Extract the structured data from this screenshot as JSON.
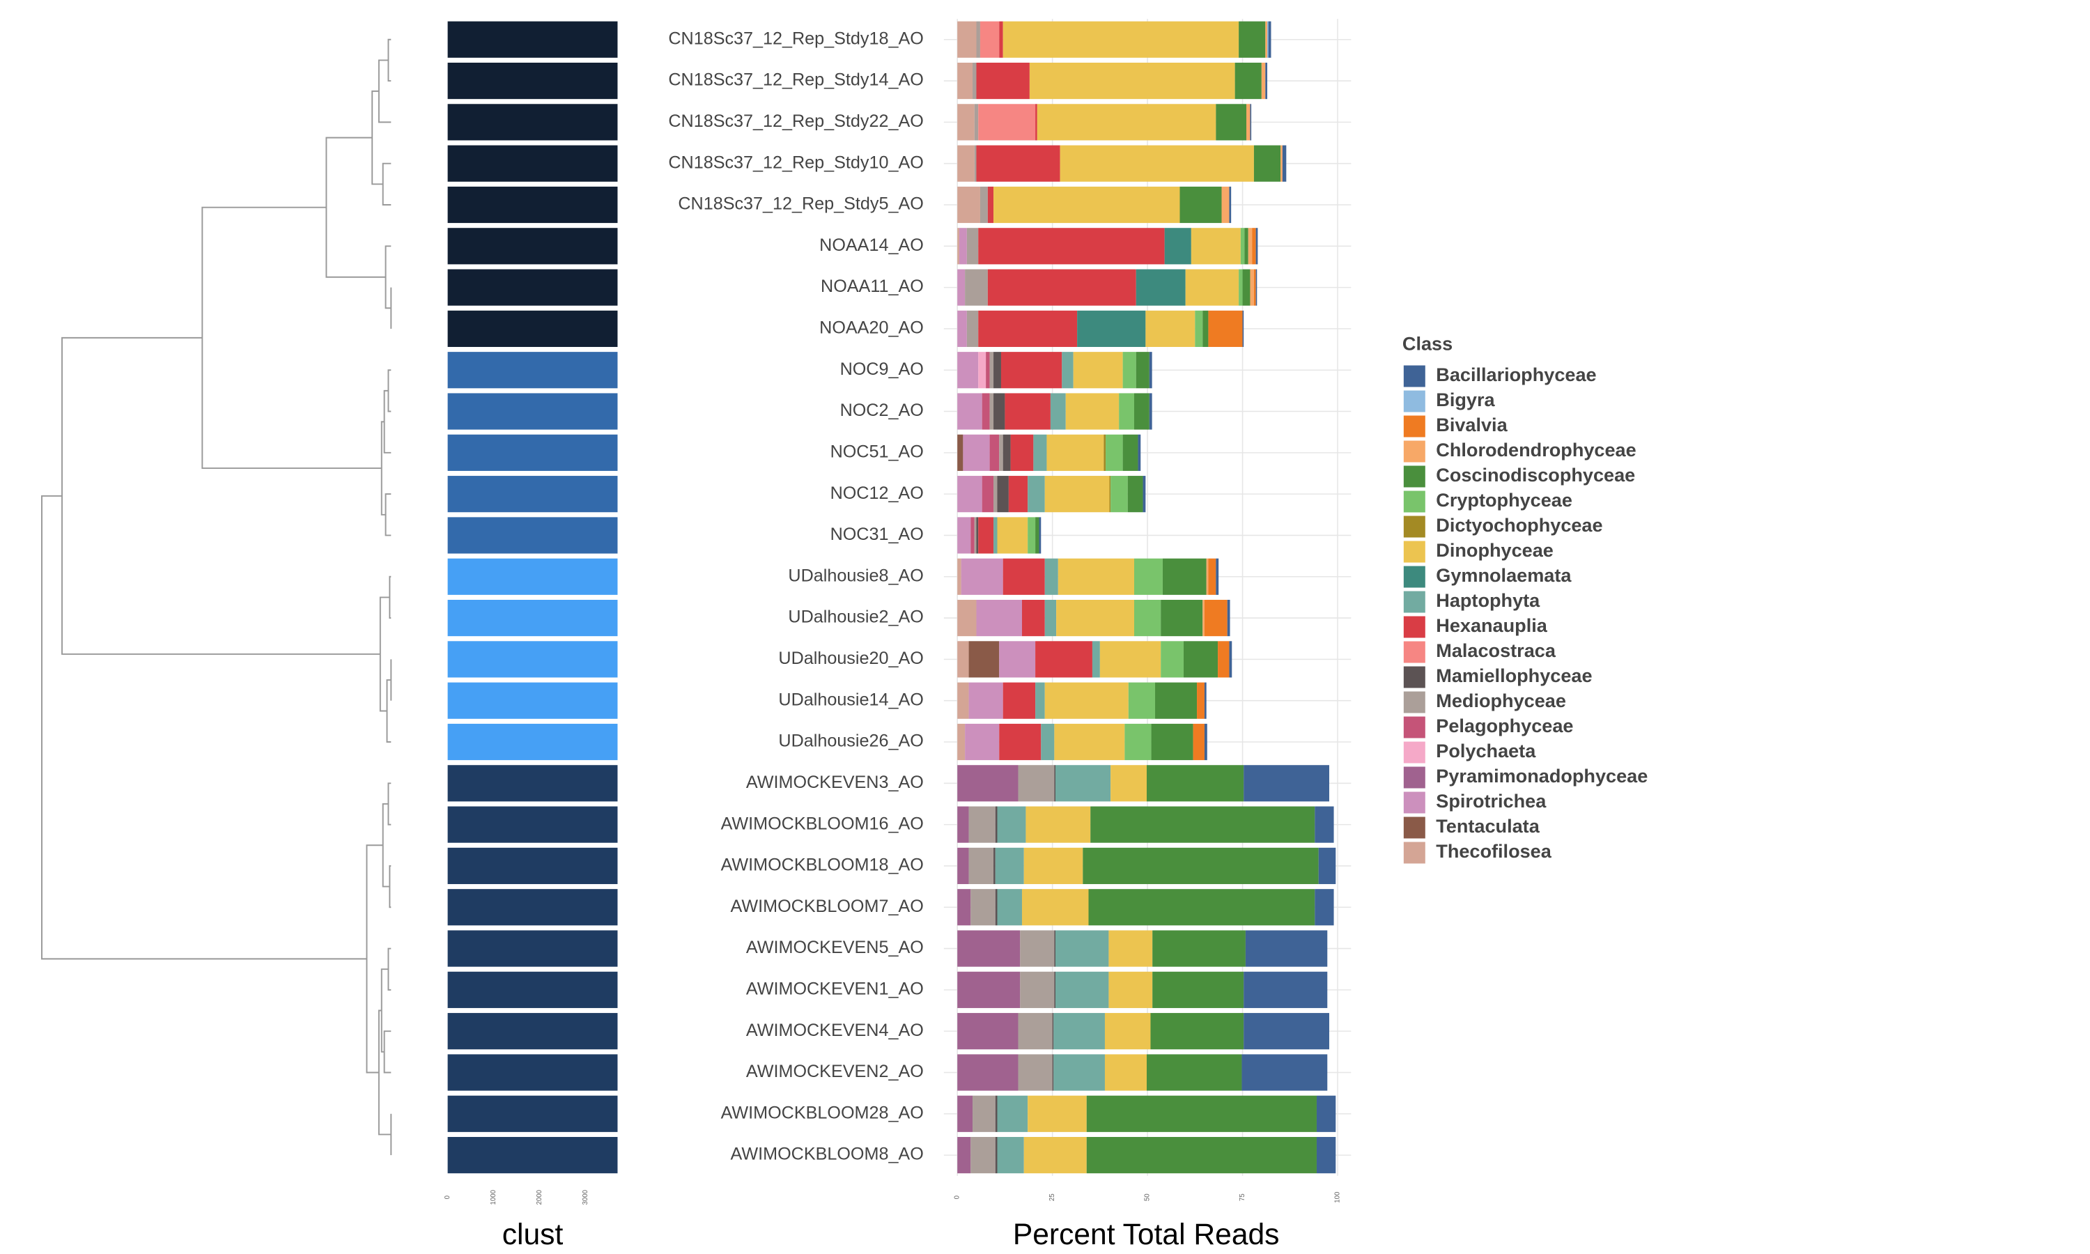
{
  "chart_data": [
    {
      "type": "bar",
      "orientation": "horizontal",
      "xlabel": "clust",
      "values": [
        3700,
        3700,
        3700,
        3700,
        3700,
        3700,
        3700,
        3700,
        3700,
        3700,
        3700,
        3700,
        3700,
        3700,
        3700,
        3700,
        3700,
        3700,
        3700,
        3700,
        3700,
        3700,
        3700,
        3700,
        3700,
        3700,
        3700,
        3700
      ],
      "colors": [
        "#111f33",
        "#111f33",
        "#111f33",
        "#111f33",
        "#111f33",
        "#111f33",
        "#111f33",
        "#111f33",
        "#336aab",
        "#336aab",
        "#336aab",
        "#336aab",
        "#336aab",
        "#46a0f5",
        "#46a0f5",
        "#46a0f5",
        "#46a0f5",
        "#46a0f5",
        "#1f3c62",
        "#1f3c62",
        "#1f3c62",
        "#1f3c62",
        "#1f3c62",
        "#1f3c62",
        "#1f3c62",
        "#1f3c62",
        "#1f3c62",
        "#1f3c62"
      ],
      "xlim": [
        0,
        3700
      ],
      "xticks": [
        0,
        1000,
        2000,
        3000
      ]
    },
    {
      "type": "stacked_bar",
      "orientation": "horizontal",
      "xlabel": "Percent Total Reads",
      "legend_title": "Class",
      "legend": "right",
      "grid": true,
      "xlim": [
        0,
        100
      ],
      "xticks": [
        0,
        25,
        50,
        75,
        100
      ],
      "categories": [
        "CN18Sc37_12_Rep_Stdy18_AO",
        "CN18Sc37_12_Rep_Stdy14_AO",
        "CN18Sc37_12_Rep_Stdy22_AO",
        "CN18Sc37_12_Rep_Stdy10_AO",
        "CN18Sc37_12_Rep_Stdy5_AO",
        "NOAA14_AO",
        "NOAA11_AO",
        "NOAA20_AO",
        "NOC9_AO",
        "NOC2_AO",
        "NOC51_AO",
        "NOC12_AO",
        "NOC31_AO",
        "UDalhousie8_AO",
        "UDalhousie2_AO",
        "UDalhousie20_AO",
        "UDalhousie14_AO",
        "UDalhousie26_AO",
        "AWIMOCKEVEN3_AO",
        "AWIMOCKBLOOM16_AO",
        "AWIMOCKBLOOM18_AO",
        "AWIMOCKBLOOM7_AO",
        "AWIMOCKEVEN5_AO",
        "AWIMOCKEVEN1_AO",
        "AWIMOCKEVEN4_AO",
        "AWIMOCKEVEN2_AO",
        "AWIMOCKBLOOM28_AO",
        "AWIMOCKBLOOM8_AO"
      ],
      "series": [
        {
          "name": "Bacillariophyceae",
          "color": "#3f6396",
          "values": [
            0.7,
            0.5,
            0.3,
            1,
            0.5,
            0.5,
            0.3,
            0.3,
            0.7,
            0.7,
            0.7,
            0.7,
            0.5,
            0.7,
            0.7,
            0.7,
            0.5,
            0.7,
            22.5,
            5,
            4.5,
            5,
            21.5,
            22,
            22.5,
            22.5,
            5,
            5
          ]
        },
        {
          "name": "Bigyra",
          "color": "#8fbbe0",
          "values": [
            0.3,
            0,
            0,
            0,
            0,
            0,
            0,
            0,
            0,
            0,
            0,
            0,
            0,
            0,
            0,
            0,
            0,
            0,
            0,
            0,
            0,
            0,
            0,
            0,
            0,
            0,
            0,
            0
          ]
        },
        {
          "name": "Bivalvia",
          "color": "#ef7b22",
          "values": [
            0,
            0,
            0,
            0,
            0,
            1,
            0.5,
            9,
            0,
            0,
            0,
            0,
            0,
            2,
            6,
            3,
            2,
            3,
            0,
            0,
            0,
            0,
            0,
            0,
            0,
            0,
            0,
            0
          ]
        },
        {
          "name": "Chlorodendrophyceae",
          "color": "#f7a867",
          "values": [
            0.5,
            1,
            1,
            0.5,
            2,
            1,
            1,
            0,
            0,
            0,
            0,
            0,
            0,
            0.5,
            0.5,
            0,
            0,
            0,
            0,
            0,
            0,
            0,
            0,
            0,
            0,
            0,
            0,
            0
          ]
        },
        {
          "name": "Coscinodiscophyceae",
          "color": "#4a8f3d",
          "values": [
            7,
            7,
            8,
            7,
            11,
            1,
            2,
            1.5,
            3.5,
            4,
            4,
            4,
            1,
            11.5,
            11,
            9,
            11,
            11,
            25.5,
            59,
            62,
            59.5,
            24.5,
            24,
            24.5,
            25,
            60.5,
            60.5
          ]
        },
        {
          "name": "Cryptophyceae",
          "color": "#79c46b",
          "values": [
            0,
            0,
            0,
            0,
            0,
            1,
            1,
            2,
            3.5,
            4,
            4.5,
            4.5,
            2,
            7.5,
            7,
            6,
            7,
            7,
            0,
            0,
            0,
            0,
            0,
            0,
            0,
            0,
            0,
            0
          ]
        },
        {
          "name": "Dictyochophyceae",
          "color": "#a38a24",
          "values": [
            0,
            0,
            0,
            0,
            0,
            0,
            0,
            0,
            0,
            0,
            0.5,
            0.3,
            0,
            0,
            0,
            0,
            0,
            0,
            0,
            0,
            0,
            0,
            0,
            0,
            0,
            0,
            0,
            0
          ]
        },
        {
          "name": "Dinophyceae",
          "color": "#ecc450",
          "values": [
            62,
            54,
            47,
            51,
            49,
            13,
            14,
            13,
            13,
            14,
            15,
            17,
            8,
            20,
            20.5,
            16,
            22,
            18.5,
            9.5,
            17,
            15.5,
            17.5,
            11.5,
            11.5,
            12,
            11,
            15.5,
            16.5
          ]
        },
        {
          "name": "Gymnolaemata",
          "color": "#3d8a7e",
          "values": [
            0,
            0,
            0,
            0,
            0,
            7,
            13,
            18,
            0,
            0,
            0,
            0,
            0,
            0,
            0,
            0,
            0,
            0,
            0,
            0,
            0,
            0,
            0,
            0,
            0,
            0,
            0,
            0
          ]
        },
        {
          "name": "Haptophyta",
          "color": "#72aba1",
          "values": [
            0,
            0,
            0,
            0,
            0,
            0,
            0,
            0,
            3,
            4,
            3.5,
            4.5,
            1,
            3.5,
            3,
            2,
            2.5,
            3.5,
            14.5,
            7.5,
            7.5,
            6.5,
            14,
            14,
            13.5,
            13.5,
            8,
            7
          ]
        },
        {
          "name": "Hexanauplia",
          "color": "#d93d45",
          "values": [
            1,
            14,
            0.5,
            22,
            1.5,
            49,
            39,
            26,
            16,
            12,
            6,
            5,
            4,
            11,
            6,
            15,
            8.5,
            11,
            0,
            0,
            0,
            0,
            0,
            0,
            0,
            0,
            0,
            0
          ]
        },
        {
          "name": "Malacostraca",
          "color": "#f68683",
          "values": [
            5,
            0,
            15,
            0,
            0,
            0,
            0,
            0,
            0,
            0,
            0,
            0,
            0,
            0,
            0,
            0,
            0,
            0,
            0,
            0,
            0,
            0,
            0,
            0,
            0,
            0,
            0,
            0
          ]
        },
        {
          "name": "Mamiellophyceae",
          "color": "#5c5354",
          "values": [
            0,
            0,
            0,
            0,
            0,
            0,
            0,
            0,
            2,
            3,
            2,
            3,
            0.5,
            0,
            0,
            0,
            0,
            0,
            0.3,
            0.5,
            0.5,
            0.5,
            0.3,
            0.3,
            0.3,
            0.3,
            0.5,
            0.5
          ]
        },
        {
          "name": "Mediophyceae",
          "color": "#ab9f99",
          "values": [
            1,
            1,
            1,
            0.5,
            2,
            3,
            6,
            3,
            1,
            1,
            1,
            1,
            0.5,
            0,
            0,
            0,
            0,
            0,
            9.5,
            7,
            6.5,
            6.5,
            9,
            9,
            9,
            9,
            6,
            6.5
          ]
        },
        {
          "name": "Pelagophyceae",
          "color": "#c55478",
          "values": [
            0,
            0,
            0,
            0,
            0,
            0,
            0,
            0,
            1,
            2,
            2.5,
            3,
            1,
            0,
            0,
            0,
            0,
            0,
            0,
            0,
            0,
            0,
            0,
            0,
            0,
            0,
            0,
            0
          ]
        },
        {
          "name": "Polychaeta",
          "color": "#f5a9c8",
          "values": [
            0,
            0,
            0,
            0,
            0,
            0,
            0,
            0,
            2,
            0,
            0,
            0,
            0,
            0,
            0,
            0,
            0,
            0,
            0,
            0,
            0,
            0,
            0,
            0,
            0,
            0,
            0,
            0
          ]
        },
        {
          "name": "Pyramimonadophyceae",
          "color": "#a0628f",
          "values": [
            0,
            0,
            0,
            0,
            0,
            0,
            0,
            0,
            0,
            0,
            0,
            0,
            0,
            0,
            0,
            0,
            0,
            0,
            16,
            3,
            3,
            3.5,
            16.5,
            16.5,
            16,
            16,
            4,
            3.5
          ]
        },
        {
          "name": "Spirotrichea",
          "color": "#cc90bd",
          "values": [
            0,
            0,
            0,
            0,
            0,
            2,
            2,
            2.5,
            5.5,
            6.5,
            7,
            6.5,
            3.5,
            11,
            12,
            9.5,
            9,
            9,
            0,
            0,
            0,
            0,
            0,
            0,
            0,
            0,
            0,
            0
          ]
        },
        {
          "name": "Tentaculata",
          "color": "#8a5a48",
          "values": [
            0,
            0,
            0,
            0,
            0,
            0,
            0,
            0,
            0,
            0,
            1.5,
            0,
            0,
            0,
            0,
            8,
            0,
            0,
            0,
            0,
            0,
            0,
            0,
            0,
            0,
            0,
            0,
            0
          ]
        },
        {
          "name": "Thecofilosea",
          "color": "#d4a595",
          "values": [
            5,
            4,
            4.5,
            4.5,
            6,
            0.5,
            0,
            0,
            0,
            0,
            0,
            0,
            0,
            1,
            5,
            3,
            3,
            2,
            0,
            0,
            0,
            0,
            0,
            0,
            0,
            0,
            0,
            0
          ]
        }
      ]
    }
  ]
}
